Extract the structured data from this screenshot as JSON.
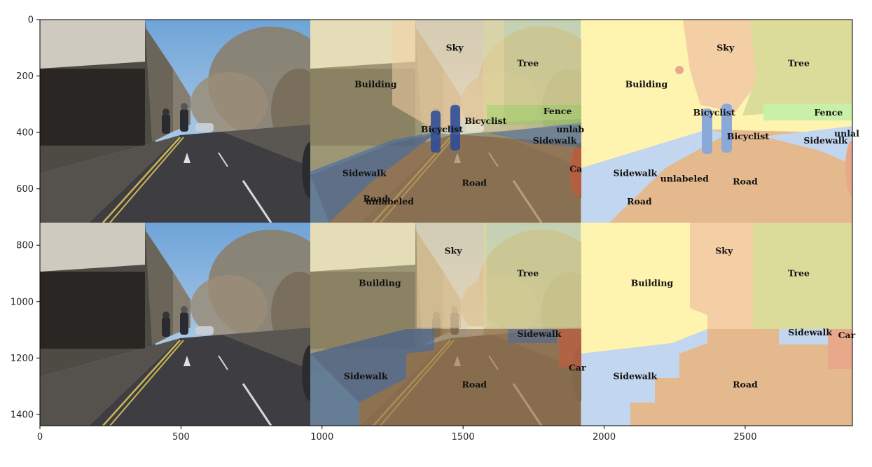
{
  "figure": {
    "description_panels": [
      "input image",
      "image with segmentation overlay",
      "segmentation map"
    ],
    "axes": {
      "x_ticks": [
        0,
        500,
        1000,
        1500,
        2000,
        2500
      ],
      "y_ticks": [
        0,
        200,
        400,
        600,
        800,
        1000,
        1200,
        1400
      ],
      "xlim": [
        0,
        2880
      ],
      "ylim": [
        1440,
        0
      ]
    },
    "top_row": {
      "overlay_labels": [
        {
          "text": "Sky",
          "x": 1470,
          "y": 100
        },
        {
          "text": "Tree",
          "x": 1730,
          "y": 155
        },
        {
          "text": "Building",
          "x": 1190,
          "y": 230
        },
        {
          "text": "Fence",
          "x": 1835,
          "y": 325
        },
        {
          "text": "Bicyclist",
          "x": 1425,
          "y": 390
        },
        {
          "text": "Bicyclist",
          "x": 1580,
          "y": 360
        },
        {
          "text": "unlab",
          "x": 1880,
          "y": 390
        },
        {
          "text": "Sidewalk",
          "x": 1825,
          "y": 430
        },
        {
          "text": "Sidewalk",
          "x": 1150,
          "y": 545
        },
        {
          "text": "Ca",
          "x": 1900,
          "y": 530
        },
        {
          "text": "Road",
          "x": 1540,
          "y": 580
        },
        {
          "text": "Road",
          "x": 1190,
          "y": 635
        },
        {
          "text": "unlabeled",
          "x": 1240,
          "y": 645
        }
      ],
      "map_labels": [
        {
          "text": "Sky",
          "x": 2430,
          "y": 100
        },
        {
          "text": "Tree",
          "x": 2690,
          "y": 155
        },
        {
          "text": "Building",
          "x": 2150,
          "y": 230
        },
        {
          "text": "Bicyclist",
          "x": 2390,
          "y": 330
        },
        {
          "text": "Fence",
          "x": 2795,
          "y": 330
        },
        {
          "text": "Bicyclist",
          "x": 2510,
          "y": 415
        },
        {
          "text": "Sidewalk",
          "x": 2785,
          "y": 430
        },
        {
          "text": "unlal",
          "x": 2860,
          "y": 405
        },
        {
          "text": "Sidewalk",
          "x": 2110,
          "y": 545
        },
        {
          "text": "unlabeled",
          "x": 2285,
          "y": 565
        },
        {
          "text": "Road",
          "x": 2500,
          "y": 575
        },
        {
          "text": "Road",
          "x": 2125,
          "y": 645
        }
      ]
    },
    "bottom_row": {
      "overlay_labels": [
        {
          "text": "Sky",
          "x": 1465,
          "y": 820
        },
        {
          "text": "Tree",
          "x": 1730,
          "y": 900
        },
        {
          "text": "Building",
          "x": 1205,
          "y": 935
        },
        {
          "text": "Sidewalk",
          "x": 1770,
          "y": 1115
        },
        {
          "text": "Car",
          "x": 1905,
          "y": 1235
        },
        {
          "text": "Sidewalk",
          "x": 1155,
          "y": 1265
        },
        {
          "text": "Road",
          "x": 1540,
          "y": 1295
        }
      ],
      "map_labels": [
        {
          "text": "Sky",
          "x": 2425,
          "y": 820
        },
        {
          "text": "Tree",
          "x": 2690,
          "y": 900
        },
        {
          "text": "Building",
          "x": 2170,
          "y": 935
        },
        {
          "text": "Sidewalk",
          "x": 2730,
          "y": 1110
        },
        {
          "text": "Car",
          "x": 2860,
          "y": 1120
        },
        {
          "text": "Sidewalk",
          "x": 2110,
          "y": 1265
        },
        {
          "text": "Road",
          "x": 2500,
          "y": 1295
        }
      ]
    },
    "colors": {
      "sky": "#f4cfa6",
      "building": "#fff3b0",
      "tree": "#dcdc9a",
      "road": "#e3b98d",
      "sidewalk": "#c3d6ef",
      "fence": "#c8f0a8",
      "bicyclist": "#8aa8d8",
      "car": "#e8a88a"
    }
  }
}
